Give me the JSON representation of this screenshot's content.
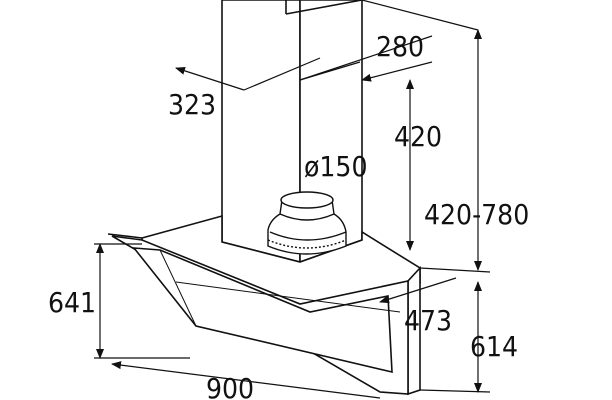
{
  "diagram": {
    "labels": {
      "chimney_width": "323",
      "chimney_depth": "280",
      "chimney_height_upper": "420",
      "duct_diameter": "ø150",
      "total_height_range": "420-780",
      "canopy_height": "641",
      "canopy_depth": "473",
      "canopy_front_height": "614",
      "canopy_width": "900"
    },
    "colors": {
      "line": "#111111",
      "fill": "#ffffff"
    }
  }
}
